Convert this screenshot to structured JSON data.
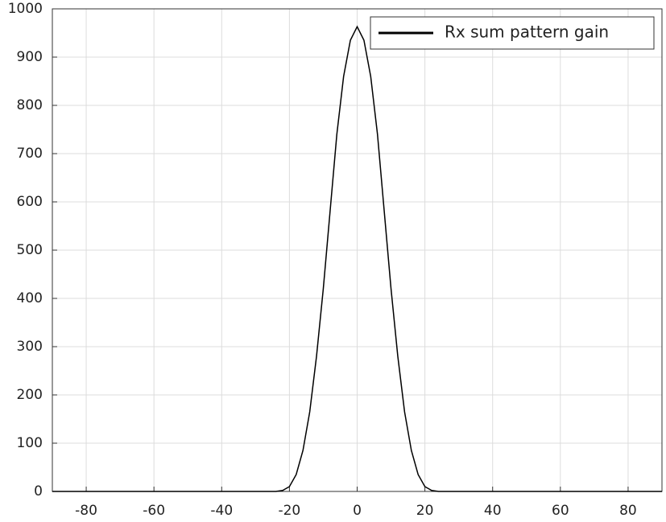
{
  "chart_data": {
    "type": "line",
    "x": [
      -90,
      -24,
      -22,
      -20,
      -18,
      -16,
      -14,
      -12,
      -10,
      -8,
      -6,
      -4,
      -2,
      0,
      2,
      4,
      6,
      8,
      10,
      12,
      14,
      16,
      18,
      20,
      22,
      24,
      90
    ],
    "series": [
      {
        "name": "Rx sum pattern gain",
        "color": "#000000",
        "values": [
          0,
          0,
          2,
          10,
          35,
          85,
          165,
          280,
          420,
          580,
          740,
          860,
          935,
          963,
          935,
          860,
          740,
          580,
          420,
          280,
          165,
          85,
          35,
          10,
          2,
          0,
          0
        ]
      }
    ],
    "xlim": [
      -90,
      90
    ],
    "xticks": [
      -80,
      -60,
      -40,
      -20,
      0,
      20,
      40,
      60,
      80
    ],
    "ylim": [
      0,
      1000
    ],
    "yticks": [
      0,
      100,
      200,
      300,
      400,
      500,
      600,
      700,
      800,
      900,
      1000
    ],
    "grid": true,
    "legend": "top-right"
  }
}
